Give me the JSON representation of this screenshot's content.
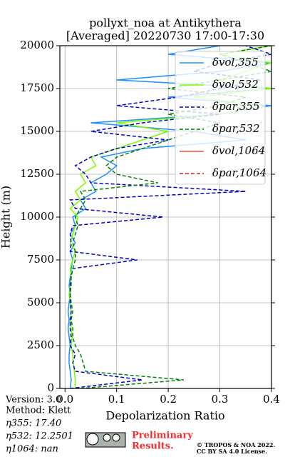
{
  "chart_data": {
    "type": "line",
    "title": [
      "pollyxt_noa at Antikythera",
      "[Averaged] 20220730 17:00-17:30"
    ],
    "x_label": "Depolarization Ratio",
    "y_label": "Height (m)",
    "heights": [
      0,
      500,
      1000,
      1500,
      2000,
      2500,
      3000,
      3500,
      4000,
      4500,
      5000,
      5500,
      6000,
      6500,
      7000,
      7500,
      8000,
      8500,
      9000,
      9500,
      10000,
      10500,
      11000,
      11500,
      12000,
      12500,
      13000,
      13500,
      14000,
      14500,
      15000,
      15500,
      16000,
      16500,
      17000,
      17500,
      18000,
      18500,
      19000,
      19500,
      20000
    ],
    "series": [
      {
        "name": "δvol,355",
        "color": "#1e90ff",
        "dashed": false,
        "values": [
          0.01,
          0.012,
          0.01,
          0.008,
          0.008,
          0.01,
          0.008,
          0.006,
          0.008,
          0.006,
          0.008,
          0.01,
          0.008,
          0.01,
          0.012,
          0.015,
          0.01,
          0.02,
          0.01,
          0.02,
          0.015,
          0.04,
          0.03,
          0.06,
          0.05,
          0.08,
          0.1,
          0.07,
          0.15,
          0.35,
          0.25,
          0.05,
          0.3,
          0.4,
          0.2,
          0.4,
          0.1,
          0.3,
          0.4,
          0.2,
          0.3
        ]
      },
      {
        "name": "δvol,532",
        "color": "#7cfc00",
        "dashed": false,
        "values": [
          0.02,
          0.02,
          0.018,
          0.016,
          0.015,
          0.012,
          0.014,
          0.012,
          0.01,
          0.012,
          0.01,
          0.008,
          0.01,
          0.012,
          0.01,
          0.015,
          0.02,
          0.01,
          0.015,
          0.02,
          0.025,
          0.01,
          0.03,
          0.02,
          0.04,
          0.03,
          0.06,
          0.05,
          0.1,
          0.15,
          0.2,
          0.1,
          0.3,
          0.38,
          0.25,
          0.4,
          0.3,
          0.35,
          0.4,
          0.3,
          0.4
        ]
      },
      {
        "name": "δpar,355",
        "color": "#0000cd",
        "dashed": true,
        "values": [
          0.01,
          0.15,
          0.02,
          0.015,
          0.02,
          0.01,
          0.012,
          0.01,
          0.01,
          0.012,
          0.01,
          0.01,
          0.01,
          0.012,
          0.015,
          0.14,
          0.01,
          0.012,
          0.01,
          0.015,
          0.19,
          0.02,
          0.01,
          0.35,
          0.05,
          0.04,
          0.02,
          0.05,
          0.1,
          0.2,
          0.05,
          0.15,
          0.3,
          0.1,
          0.22,
          0.3,
          0.38,
          0.25,
          0.3,
          0.4,
          0.35
        ]
      },
      {
        "name": "δpar,532",
        "color": "#008000",
        "dashed": true,
        "values": [
          0.03,
          0.23,
          0.04,
          0.035,
          0.03,
          0.02,
          0.015,
          0.015,
          0.012,
          0.015,
          0.012,
          0.01,
          0.012,
          0.012,
          0.015,
          0.02,
          0.02,
          0.015,
          0.02,
          0.025,
          0.02,
          0.03,
          0.04,
          0.03,
          0.18,
          0.1,
          0.08,
          0.1,
          0.15,
          0.2,
          0.25,
          0.3,
          0.2,
          0.3,
          0.35,
          0.2,
          0.3,
          0.4,
          0.35,
          0.3,
          0.4
        ]
      },
      {
        "name": "δvol,1064",
        "color": "#f0503c",
        "dashed": false,
        "values": [
          null,
          null,
          null,
          null,
          null,
          null,
          null,
          null,
          null,
          null,
          null,
          null,
          null,
          null,
          null,
          null,
          null,
          null,
          null,
          null,
          null,
          null,
          null,
          null,
          null,
          null,
          null,
          null,
          null,
          null,
          null,
          null,
          null,
          null,
          null,
          null,
          null,
          null,
          null,
          null,
          null
        ]
      },
      {
        "name": "δpar,1064",
        "color": "#d62728",
        "dashed": true,
        "values": [
          null,
          null,
          null,
          null,
          null,
          null,
          null,
          null,
          null,
          null,
          null,
          null,
          null,
          null,
          null,
          null,
          null,
          null,
          null,
          null,
          null,
          null,
          null,
          null,
          null,
          null,
          null,
          null,
          null,
          null,
          null,
          null,
          null,
          null,
          null,
          null,
          null,
          null,
          null,
          null,
          null
        ]
      }
    ],
    "xlim": [
      -0.01,
      0.4
    ],
    "xticks": [
      {
        "value": 0,
        "label": "0.0"
      },
      0.1,
      0.2,
      0.3,
      0.4
    ],
    "ylim": [
      0,
      20000
    ],
    "yticks": [
      0,
      2500,
      5000,
      7500,
      10000,
      12500,
      15000,
      17500,
      20000
    ],
    "grid": true,
    "legend": "upper right",
    "info": [
      "Version: 3.0",
      "Method: Klett",
      "η355:  17.40",
      "η532: 12.2501",
      "η1064:    nan"
    ],
    "badge": [
      "Preliminary",
      "Results."
    ],
    "copyright": [
      "© TROPOS & NOA 2022.",
      "CC BY SA 4.0 License."
    ]
  }
}
